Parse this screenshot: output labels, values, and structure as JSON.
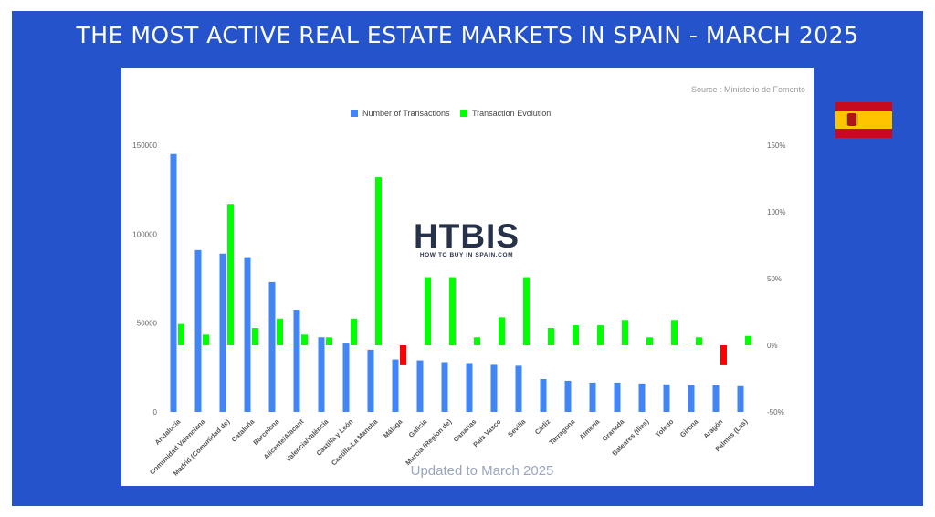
{
  "title": "THE MOST ACTIVE REAL ESTATE MARKETS IN SPAIN - MARCH 2025",
  "source": "Source : Ministerio de Fomento",
  "footer": "Updated to March 2025",
  "logo": {
    "text": "HTBIS",
    "tagline": "HOW TO BUY IN SPAIN.COM"
  },
  "flag": {
    "icon": "spain-flag-icon",
    "colors": {
      "red": "#c60b1e",
      "yellow": "#ffc400"
    }
  },
  "colors": {
    "frame": "#2553cc",
    "transactions": "#4285f4",
    "evolution_up": "#00ff00",
    "evolution_down": "#ff0000"
  },
  "chart_data": {
    "type": "bar",
    "legend_position": "top",
    "grid": false,
    "categories": [
      "Andalucía",
      "Comunidad Valenciana",
      "Madrid (Comunidad de)",
      "Cataluña",
      "Barcelona",
      "Alicante/Alacant",
      "Valencia/València",
      "Castilla y León",
      "Castilla-La Mancha",
      "Málaga",
      "Galicia",
      "Murcia (Región de)",
      "Canarias",
      "País Vasco",
      "Sevilla",
      "Cádiz",
      "Tarragona",
      "Almería",
      "Granada",
      "Baleares (Illes)",
      "Toledo",
      "Girona",
      "Aragón",
      "Palmas (Las)"
    ],
    "series": [
      {
        "name": "Number of Transactions",
        "axis": "left",
        "values": [
          145000,
          91000,
          89000,
          87000,
          73000,
          57500,
          42000,
          38500,
          35000,
          29500,
          29000,
          28000,
          27500,
          26500,
          26000,
          18500,
          17500,
          16500,
          16500,
          16000,
          15500,
          15000,
          15000,
          14500
        ]
      },
      {
        "name": "Transaction Evolution",
        "axis": "right",
        "unit": "%",
        "values": [
          16,
          8,
          106,
          13,
          20,
          8,
          6,
          20,
          126,
          -15,
          51,
          51,
          6,
          21,
          51,
          13,
          15,
          15,
          19,
          6,
          19,
          6,
          -15,
          7
        ]
      }
    ],
    "y_left": {
      "min": 0,
      "max": 150000,
      "ticks": [
        "0",
        "50000",
        "100000",
        "150000"
      ]
    },
    "y_right": {
      "min": -50,
      "max": 150,
      "ticks": [
        "-50%",
        "0%",
        "50%",
        "100%",
        "150%"
      ]
    }
  }
}
